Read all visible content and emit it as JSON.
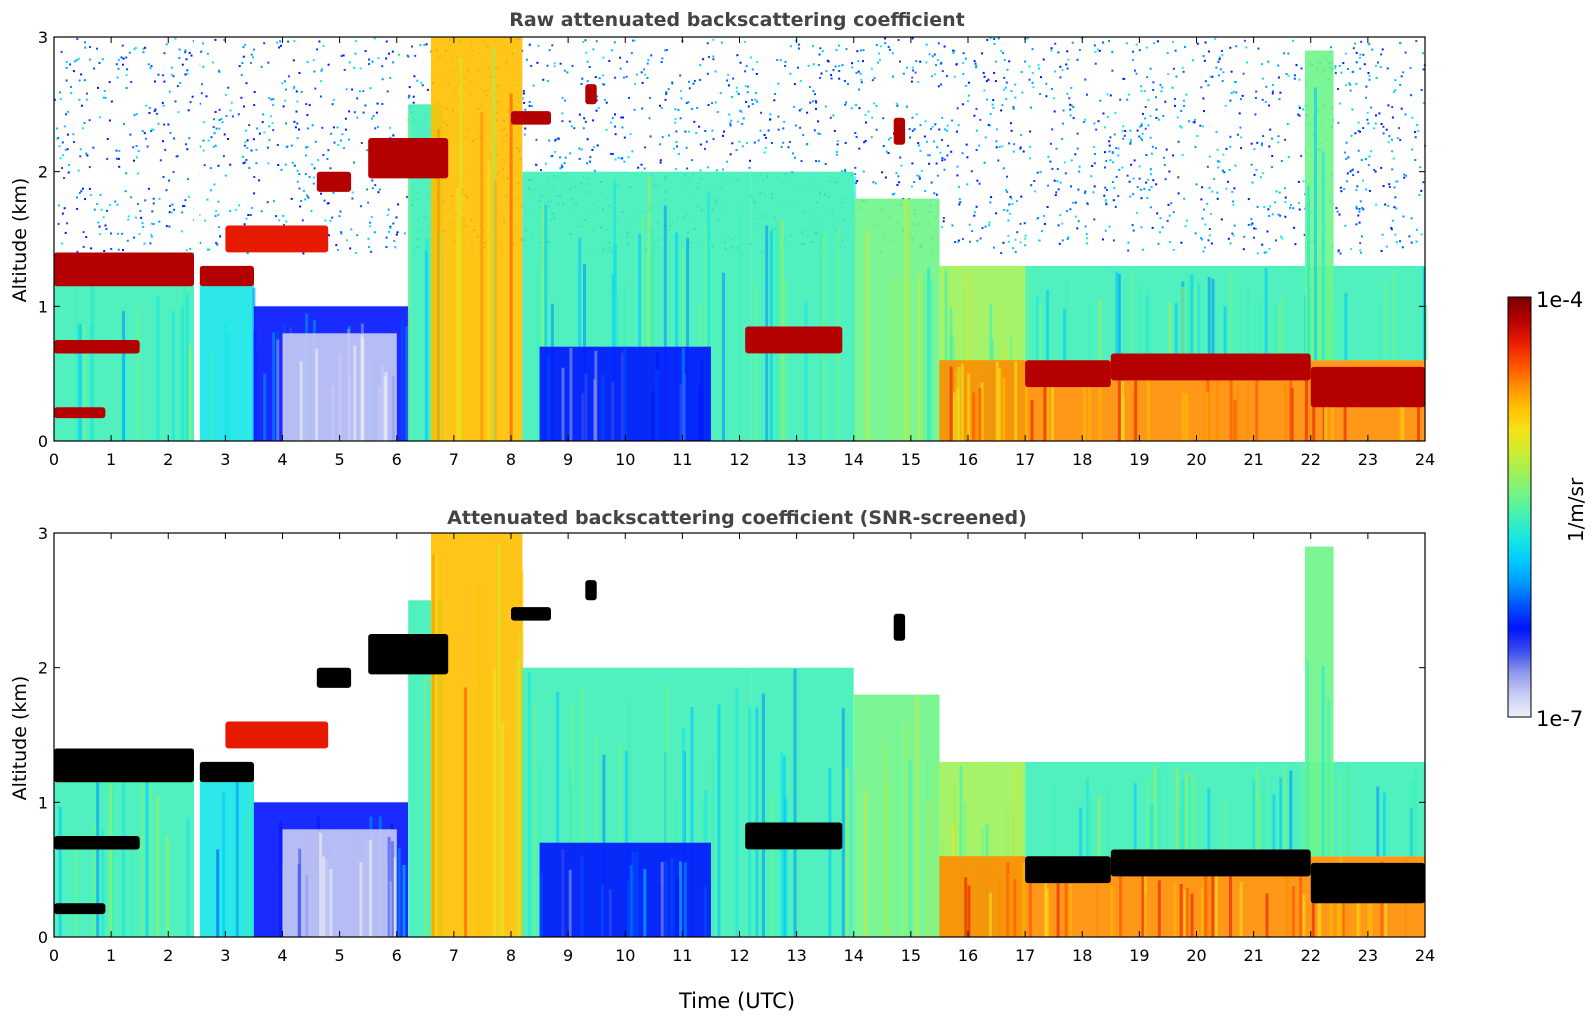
{
  "chart_data": [
    {
      "type": "heatmap",
      "title": "Raw attenuated backscattering coefficient",
      "xlabel": "",
      "ylabel": "Altitude (km)",
      "xlim": [
        0,
        24
      ],
      "ylim": [
        0,
        3
      ],
      "x_ticks": [
        "0",
        "1",
        "2",
        "3",
        "4",
        "5",
        "6",
        "7",
        "8",
        "9",
        "10",
        "11",
        "12",
        "13",
        "14",
        "15",
        "16",
        "17",
        "18",
        "19",
        "20",
        "21",
        "22",
        "23",
        "24"
      ],
      "y_ticks": [
        "0",
        "1",
        "2",
        "3"
      ],
      "gap_x": [
        2.45,
        2.55
      ],
      "regions": [
        {
          "x0": 0.0,
          "x1": 2.45,
          "y0": 0.0,
          "y1": 1.4,
          "level": 0.45
        },
        {
          "x0": 2.55,
          "x1": 3.5,
          "y0": 0.0,
          "y1": 1.2,
          "level": 0.4
        },
        {
          "x0": 3.5,
          "x1": 6.2,
          "y0": 0.0,
          "y1": 1.0,
          "level": 0.22
        },
        {
          "x0": 4.0,
          "x1": 6.0,
          "y0": 0.0,
          "y1": 0.8,
          "level": 0.05
        },
        {
          "x0": 6.2,
          "x1": 6.8,
          "y0": 0.0,
          "y1": 2.5,
          "level": 0.45
        },
        {
          "x0": 6.6,
          "x1": 8.2,
          "y0": 0.0,
          "y1": 3.0,
          "level": 0.72
        },
        {
          "x0": 8.2,
          "x1": 12.2,
          "y0": 0.0,
          "y1": 2.0,
          "level": 0.45
        },
        {
          "x0": 8.5,
          "x1": 11.5,
          "y0": 0.0,
          "y1": 0.7,
          "level": 0.22
        },
        {
          "x0": 12.2,
          "x1": 14.0,
          "y0": 0.0,
          "y1": 2.0,
          "level": 0.45
        },
        {
          "x0": 14.0,
          "x1": 15.5,
          "y0": 0.0,
          "y1": 1.8,
          "level": 0.55
        },
        {
          "x0": 15.5,
          "x1": 17.0,
          "y0": 0.0,
          "y1": 1.3,
          "level": 0.6
        },
        {
          "x0": 15.5,
          "x1": 24.0,
          "y0": 0.0,
          "y1": 0.6,
          "level": 0.78
        },
        {
          "x0": 17.0,
          "x1": 24.0,
          "y0": 0.6,
          "y1": 1.3,
          "level": 0.45
        },
        {
          "x0": 21.9,
          "x1": 22.4,
          "y0": 0.6,
          "y1": 2.9,
          "level": 0.5
        }
      ],
      "layers": [
        {
          "x0": 0.0,
          "x1": 2.45,
          "y0": 1.15,
          "y1": 1.4,
          "level": 0.97
        },
        {
          "x0": 2.55,
          "x1": 3.5,
          "y0": 1.15,
          "y1": 1.3,
          "level": 0.97
        },
        {
          "x0": 0.0,
          "x1": 1.5,
          "y0": 0.65,
          "y1": 0.75,
          "level": 0.95
        },
        {
          "x0": 0.0,
          "x1": 0.9,
          "y0": 0.17,
          "y1": 0.25,
          "level": 0.95
        },
        {
          "x0": 3.0,
          "x1": 4.8,
          "y0": 1.4,
          "y1": 1.6,
          "level": 0.9
        },
        {
          "x0": 4.6,
          "x1": 5.2,
          "y0": 1.85,
          "y1": 2.0,
          "level": 0.95
        },
        {
          "x0": 5.5,
          "x1": 6.9,
          "y0": 1.95,
          "y1": 2.25,
          "level": 0.97
        },
        {
          "x0": 8.0,
          "x1": 8.7,
          "y0": 2.35,
          "y1": 2.45,
          "level": 0.95
        },
        {
          "x0": 9.3,
          "x1": 9.5,
          "y0": 2.5,
          "y1": 2.65,
          "level": 0.95
        },
        {
          "x0": 12.1,
          "x1": 13.8,
          "y0": 0.65,
          "y1": 0.85,
          "level": 0.97
        },
        {
          "x0": 14.7,
          "x1": 14.9,
          "y0": 2.2,
          "y1": 2.4,
          "level": 0.95
        },
        {
          "x0": 17.0,
          "x1": 18.5,
          "y0": 0.4,
          "y1": 0.6,
          "level": 0.97
        },
        {
          "x0": 18.5,
          "x1": 22.0,
          "y0": 0.45,
          "y1": 0.65,
          "level": 0.95
        },
        {
          "x0": 22.0,
          "x1": 24.0,
          "y0": 0.25,
          "y1": 0.55,
          "level": 0.97
        }
      ]
    },
    {
      "type": "heatmap",
      "title": "Attenuated backscattering coefficient (SNR-screened)",
      "xlabel": "Time (UTC)",
      "ylabel": "Altitude (km)",
      "xlim": [
        0,
        24
      ],
      "ylim": [
        0,
        3
      ],
      "x_ticks": [
        "0",
        "1",
        "2",
        "3",
        "4",
        "5",
        "6",
        "7",
        "8",
        "9",
        "10",
        "11",
        "12",
        "13",
        "14",
        "15",
        "16",
        "17",
        "18",
        "19",
        "20",
        "21",
        "22",
        "23",
        "24"
      ],
      "y_ticks": [
        "0",
        "1",
        "2",
        "3"
      ],
      "gap_x": [
        2.45,
        2.55
      ],
      "screened_above_km": 1.0,
      "screened_layer_color": "#000000",
      "regions": [
        {
          "x0": 0.0,
          "x1": 2.45,
          "y0": 0.0,
          "y1": 1.4,
          "level": 0.45
        },
        {
          "x0": 2.55,
          "x1": 3.5,
          "y0": 0.0,
          "y1": 1.2,
          "level": 0.4
        },
        {
          "x0": 3.5,
          "x1": 6.2,
          "y0": 0.0,
          "y1": 1.0,
          "level": 0.22
        },
        {
          "x0": 4.0,
          "x1": 6.0,
          "y0": 0.0,
          "y1": 0.8,
          "level": 0.05
        },
        {
          "x0": 6.2,
          "x1": 6.8,
          "y0": 0.0,
          "y1": 2.5,
          "level": 0.45
        },
        {
          "x0": 6.6,
          "x1": 8.2,
          "y0": 0.0,
          "y1": 3.0,
          "level": 0.72
        },
        {
          "x0": 8.2,
          "x1": 12.2,
          "y0": 0.0,
          "y1": 2.0,
          "level": 0.45
        },
        {
          "x0": 8.5,
          "x1": 11.5,
          "y0": 0.0,
          "y1": 0.7,
          "level": 0.22
        },
        {
          "x0": 12.2,
          "x1": 14.0,
          "y0": 0.0,
          "y1": 2.0,
          "level": 0.45
        },
        {
          "x0": 14.0,
          "x1": 15.5,
          "y0": 0.0,
          "y1": 1.8,
          "level": 0.55
        },
        {
          "x0": 15.5,
          "x1": 17.0,
          "y0": 0.0,
          "y1": 1.3,
          "level": 0.6
        },
        {
          "x0": 15.5,
          "x1": 24.0,
          "y0": 0.0,
          "y1": 0.6,
          "level": 0.78
        },
        {
          "x0": 17.0,
          "x1": 24.0,
          "y0": 0.6,
          "y1": 1.3,
          "level": 0.45
        },
        {
          "x0": 21.9,
          "x1": 22.4,
          "y0": 0.6,
          "y1": 2.9,
          "level": 0.5
        }
      ],
      "layers": [
        {
          "x0": 0.0,
          "x1": 2.45,
          "y0": 1.15,
          "y1": 1.4,
          "level": 0.97
        },
        {
          "x0": 2.55,
          "x1": 3.5,
          "y0": 1.15,
          "y1": 1.3,
          "level": 0.97
        },
        {
          "x0": 0.0,
          "x1": 1.5,
          "y0": 0.65,
          "y1": 0.75,
          "level": 0.95
        },
        {
          "x0": 0.0,
          "x1": 0.9,
          "y0": 0.17,
          "y1": 0.25,
          "level": 0.95
        },
        {
          "x0": 3.0,
          "x1": 4.8,
          "y0": 1.4,
          "y1": 1.6,
          "level": 0.9
        },
        {
          "x0": 4.6,
          "x1": 5.2,
          "y0": 1.85,
          "y1": 2.0,
          "level": 0.95
        },
        {
          "x0": 5.5,
          "x1": 6.9,
          "y0": 1.95,
          "y1": 2.25,
          "level": 0.97
        },
        {
          "x0": 8.0,
          "x1": 8.7,
          "y0": 2.35,
          "y1": 2.45,
          "level": 0.95
        },
        {
          "x0": 9.3,
          "x1": 9.5,
          "y0": 2.5,
          "y1": 2.65,
          "level": 0.95
        },
        {
          "x0": 12.1,
          "x1": 13.8,
          "y0": 0.65,
          "y1": 0.85,
          "level": 0.97
        },
        {
          "x0": 14.7,
          "x1": 14.9,
          "y0": 2.2,
          "y1": 2.4,
          "level": 0.95
        },
        {
          "x0": 17.0,
          "x1": 18.5,
          "y0": 0.4,
          "y1": 0.6,
          "level": 0.97
        },
        {
          "x0": 18.5,
          "x1": 22.0,
          "y0": 0.45,
          "y1": 0.65,
          "level": 0.95
        },
        {
          "x0": 22.0,
          "x1": 24.0,
          "y0": 0.25,
          "y1": 0.55,
          "level": 0.97
        }
      ]
    }
  ],
  "colorbar": {
    "label": "1/m/sr",
    "max_label": "1e-4",
    "min_label": "1e-7",
    "colors": [
      "#eef0fa",
      "#c8cdf3",
      "#8f99ec",
      "#3a4cf0",
      "#0014ff",
      "#0050ff",
      "#0095ff",
      "#00c8ff",
      "#15e6e6",
      "#3ef0b8",
      "#6ef58a",
      "#9cf25a",
      "#cfeb30",
      "#f5e21a",
      "#ffc000",
      "#ff8c00",
      "#ff4d00",
      "#e61a00",
      "#b40000",
      "#7a0000"
    ]
  }
}
